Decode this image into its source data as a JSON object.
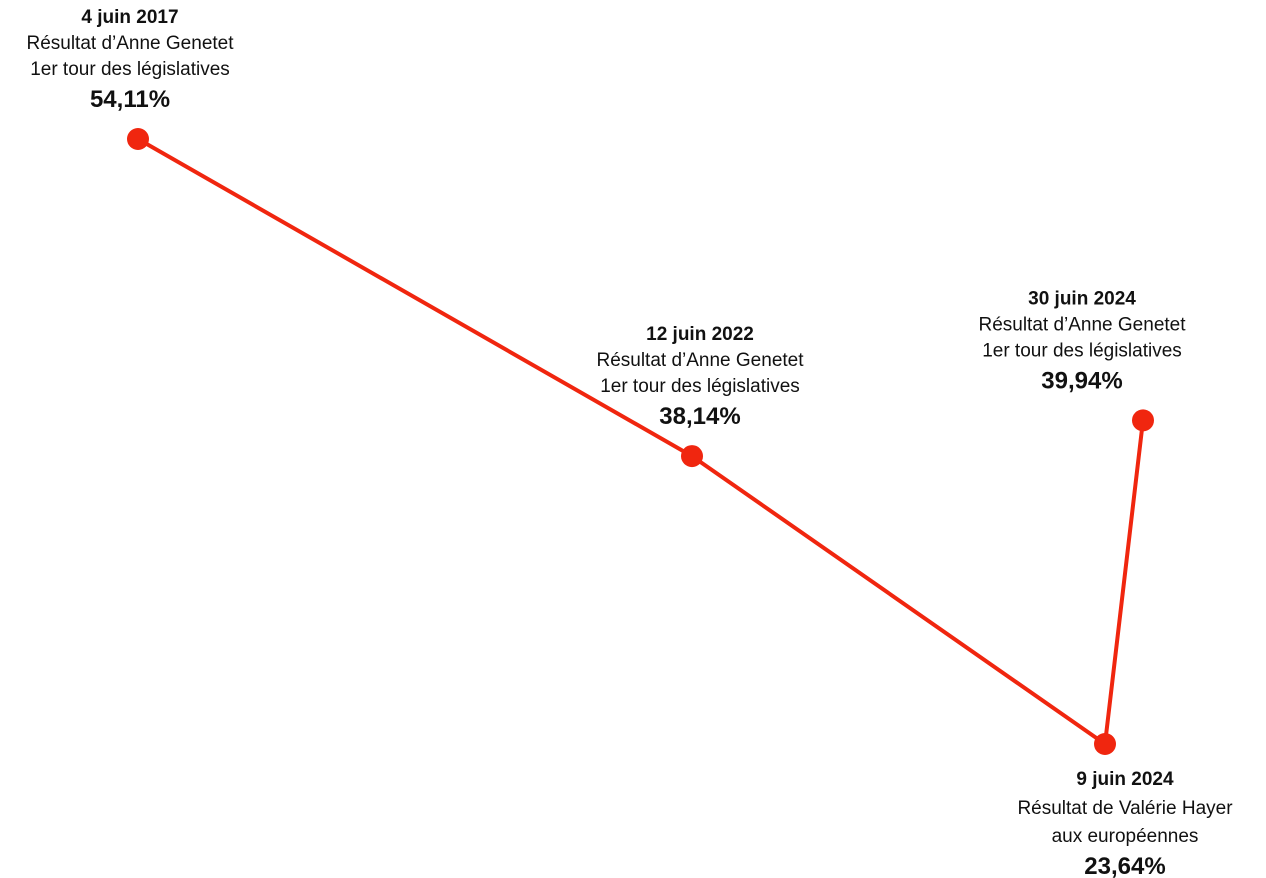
{
  "chart_data": {
    "type": "line",
    "title": "",
    "xlabel": "",
    "ylabel": "",
    "grid": false,
    "legend": "none",
    "color": "#f0260f",
    "points": [
      {
        "date": "4 juin 2017",
        "lines": [
          "Résultat d’Anne Genetet",
          "1er tour des législatives"
        ],
        "value": 54.11,
        "value_label": "54,11%",
        "label_side": "above"
      },
      {
        "date": "12 juin 2022",
        "lines": [
          "Résultat d’Anne Genetet",
          "1er tour des législatives"
        ],
        "value": 38.14,
        "value_label": "38,14%",
        "label_side": "above"
      },
      {
        "date": "9 juin 2024",
        "lines": [
          "Résultat de Valérie Hayer",
          "aux européennes"
        ],
        "value": 23.64,
        "value_label": "23,64%",
        "label_side": "below"
      },
      {
        "date": "30 juin 2024",
        "lines": [
          "Résultat d’Anne Genetet",
          "1er tour des législatives"
        ],
        "value": 39.94,
        "value_label": "39,94%",
        "label_side": "above"
      }
    ]
  }
}
